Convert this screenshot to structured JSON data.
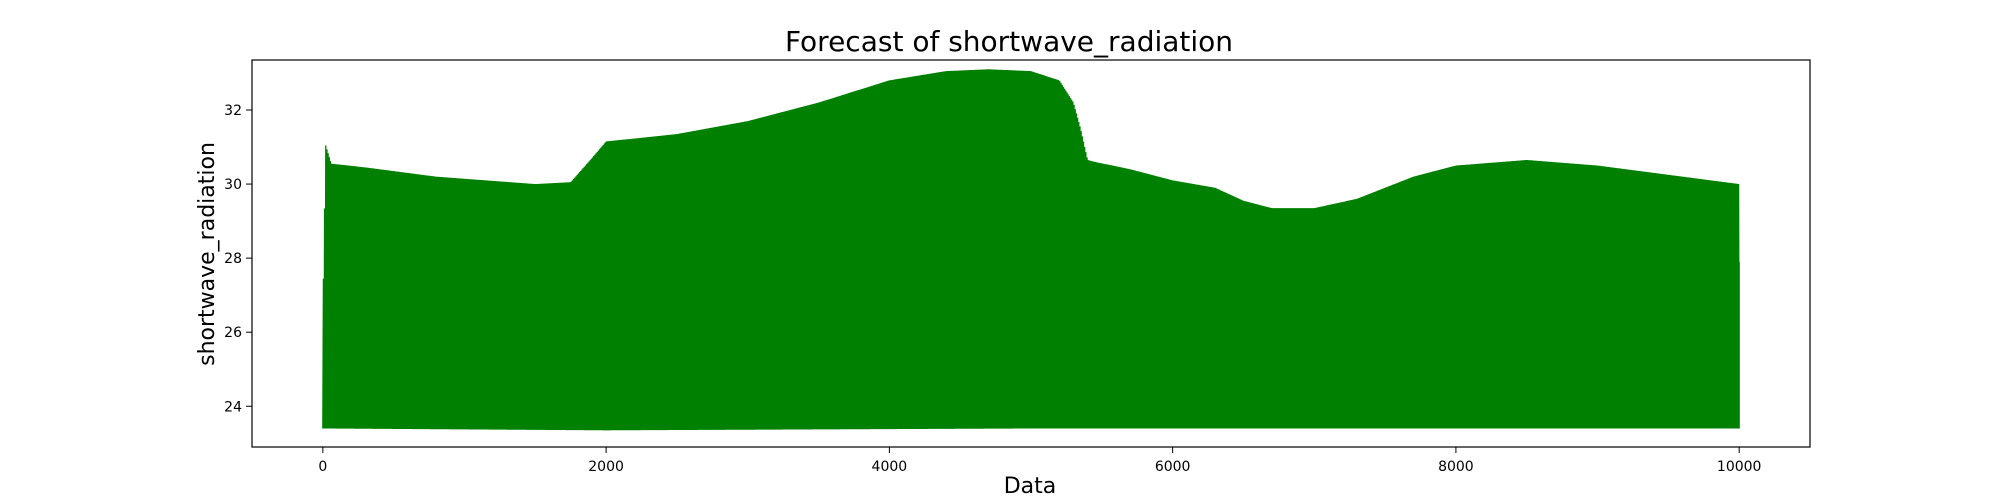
{
  "chart_data": {
    "type": "line",
    "title": "Forecast of shortwave_radiation",
    "xlabel": "Data",
    "ylabel": "shortwave_radiation",
    "xlim": [
      -500,
      10500
    ],
    "ylim": [
      22.9,
      33.35
    ],
    "xticks": [
      0,
      2000,
      4000,
      6000,
      8000,
      10000
    ],
    "yticks": [
      24,
      26,
      28,
      30,
      32
    ],
    "grid": false,
    "legend": "none",
    "series": [
      {
        "color": "#008000",
        "oscillating": true,
        "lower_envelope": {
          "x": [
            0,
            2000,
            5000,
            10000
          ],
          "y": [
            23.4,
            23.35,
            23.4,
            23.4
          ]
        },
        "upper_envelope": {
          "x": [
            0,
            20,
            60,
            300,
            800,
            1500,
            1750,
            1900,
            2000,
            2500,
            3000,
            3500,
            4000,
            4400,
            4700,
            5000,
            5200,
            5300,
            5350,
            5400,
            5450,
            5700,
            6000,
            6300,
            6500,
            6700,
            7000,
            7300,
            7500,
            7700,
            8000,
            8500,
            9000,
            9500,
            10000
          ],
          "y": [
            26.5,
            31.05,
            30.55,
            30.45,
            30.2,
            30.0,
            30.05,
            30.7,
            31.15,
            31.35,
            31.7,
            32.2,
            32.8,
            33.05,
            33.1,
            33.05,
            32.8,
            32.2,
            31.5,
            30.65,
            30.6,
            30.4,
            30.1,
            29.9,
            29.55,
            29.35,
            29.35,
            29.6,
            29.9,
            30.2,
            30.5,
            30.65,
            30.5,
            30.25,
            30.0
          ]
        },
        "end_value": {
          "x": 10000,
          "y": 27.9
        }
      }
    ]
  }
}
